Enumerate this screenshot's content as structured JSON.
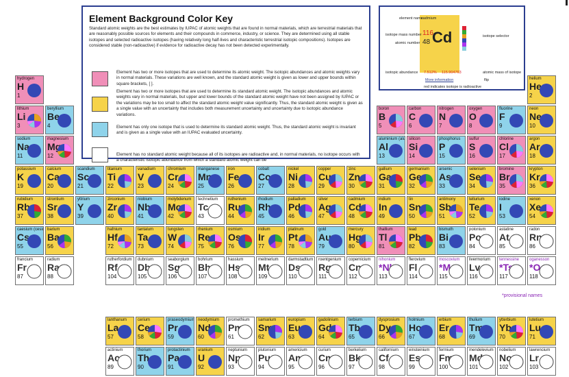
{
  "key": {
    "title": "Element Background Color Key",
    "intro": "Standard atomic weights are the best estimates by IUPAC of atomic weights that are found in normal materials, which are terrestrial materials that are reasonably possible sources for elements and their compounds in commerce, industry, or science. They are determined using all stable isotopes and selected radioactive isotopes (having relatively long half-lives and characteristic terrestrial isotopic compositions). Isotopes are considered stable (non-radioactive) if evidence for radioactive decay has not been detected experimentally.",
    "entries": [
      {
        "color": "#f08fb8",
        "text": "Element has two or more isotopes that are used to determine its atomic weight. The isotopic abundances and atomic weights vary in normal materials. These variations are well known, and the standard atomic weight is given as lower and upper bounds within square brackets, [ ]."
      },
      {
        "color": "#f6d34a",
        "text": "Element has two or more isotopes that are used to determine its standard atomic weight. The isotopic abundances and atomic weights vary in normal materials, but upper and lower bounds of the standard atomic weight have not been assigned by IUPAC or the variations may be too small to affect the standard atomic weight value significantly. Thus, the standard atomic weight is given as a single value with an uncertainty that includes both measurement uncertainty and uncertainty due to isotopic abundance variations."
      },
      {
        "color": "#8fd3ea",
        "text": "Element has only one isotope that is used to determine its standard atomic weight. Thus, the standard atomic weight is invariant and is given as a single value with an IUPAC evaluated uncertainty."
      },
      {
        "color": "#ffffff",
        "text": "Element has no standard atomic weight because all of its isotopes are radioactive and, in normal materials, no isotope occurs with a characteristic isotopic abundance from which a standard atomic weight can be"
      }
    ]
  },
  "legend": {
    "element_name": "cadmium",
    "mass_number": "116",
    "atomic_number": "48",
    "symbol": "Cd",
    "abundance": "7.512%",
    "isotope_mass": "115.904763",
    "labels": {
      "element_name": "element name",
      "mass_number": "isotope mass number",
      "atomic_number": "atomic number",
      "isotope_selector": "isotope selector",
      "isotopic_abundance": "isotopic abundance",
      "atomic_mass": "atomic mass of isotope",
      "more_info": "More information",
      "flip": "flip",
      "radioactive_note": "red indicates isotope is radioactive"
    }
  },
  "provisional_note": "*provisional names",
  "colors": {
    "pink": "#f08fb8",
    "yellow": "#f6d34a",
    "cyan": "#8fd3ea",
    "white": "#ffffff",
    "pie": "#3348b5",
    "border": "#2a3d8f"
  },
  "elements": [
    {
      "z": "1",
      "s": "H",
      "n": "hydrogen",
      "c": "pink",
      "p": "single"
    },
    {
      "z": "2",
      "s": "He",
      "n": "helium",
      "c": "yellow",
      "p": "single"
    },
    {
      "z": "3",
      "s": "Li",
      "n": "lithium",
      "c": "pink",
      "p": "multi"
    },
    {
      "z": "4",
      "s": "Be",
      "n": "beryllium",
      "c": "cyan",
      "p": "single"
    },
    {
      "z": "5",
      "s": "B",
      "n": "boron",
      "c": "pink",
      "p": "multi"
    },
    {
      "z": "6",
      "s": "C",
      "n": "carbon",
      "c": "pink",
      "p": "single"
    },
    {
      "z": "7",
      "s": "N",
      "n": "nitrogen",
      "c": "pink",
      "p": "single"
    },
    {
      "z": "8",
      "s": "O",
      "n": "oxygen",
      "c": "pink",
      "p": "single"
    },
    {
      "z": "9",
      "s": "F",
      "n": "fluorine",
      "c": "cyan",
      "p": "single"
    },
    {
      "z": "10",
      "s": "Ne",
      "n": "neon",
      "c": "yellow",
      "p": "single"
    },
    {
      "z": "11",
      "s": "Na",
      "n": "sodium",
      "c": "cyan",
      "p": "single"
    },
    {
      "z": "12",
      "s": "Mg",
      "n": "magnesium",
      "c": "pink",
      "p": "multi"
    },
    {
      "z": "13",
      "s": "Al",
      "n": "aluminium (aluminum)",
      "c": "cyan",
      "p": "single"
    },
    {
      "z": "14",
      "s": "Si",
      "n": "silicon",
      "c": "pink",
      "p": "single"
    },
    {
      "z": "15",
      "s": "P",
      "n": "phosphorus",
      "c": "cyan",
      "p": "single"
    },
    {
      "z": "16",
      "s": "S",
      "n": "sulfur",
      "c": "pink",
      "p": "single"
    },
    {
      "z": "17",
      "s": "Cl",
      "n": "chlorine",
      "c": "pink",
      "p": "multi"
    },
    {
      "z": "18",
      "s": "Ar",
      "n": "argon",
      "c": "yellow",
      "p": "single"
    },
    {
      "z": "19",
      "s": "K",
      "n": "potassium",
      "c": "yellow",
      "p": "single"
    },
    {
      "z": "20",
      "s": "Ca",
      "n": "calcium",
      "c": "yellow",
      "p": "single"
    },
    {
      "z": "21",
      "s": "Sc",
      "n": "scandium",
      "c": "cyan",
      "p": "single"
    },
    {
      "z": "22",
      "s": "Ti",
      "n": "titanium",
      "c": "yellow",
      "p": "multi"
    },
    {
      "z": "23",
      "s": "V",
      "n": "vanadium",
      "c": "yellow",
      "p": "single"
    },
    {
      "z": "24",
      "s": "Cr",
      "n": "chromium",
      "c": "yellow",
      "p": "multi"
    },
    {
      "z": "25",
      "s": "Mn",
      "n": "manganese",
      "c": "cyan",
      "p": "single"
    },
    {
      "z": "26",
      "s": "Fe",
      "n": "iron",
      "c": "yellow",
      "p": "single"
    },
    {
      "z": "27",
      "s": "Co",
      "n": "cobalt",
      "c": "cyan",
      "p": "single"
    },
    {
      "z": "28",
      "s": "Ni",
      "n": "nickel",
      "c": "yellow",
      "p": "multi"
    },
    {
      "z": "29",
      "s": "Cu",
      "n": "copper",
      "c": "yellow",
      "p": "multi"
    },
    {
      "z": "30",
      "s": "Zn",
      "n": "zinc",
      "c": "yellow",
      "p": "multi"
    },
    {
      "z": "31",
      "s": "Ga",
      "n": "gallium",
      "c": "yellow",
      "p": "multi"
    },
    {
      "z": "32",
      "s": "Ge",
      "n": "germanium",
      "c": "yellow",
      "p": "multi"
    },
    {
      "z": "33",
      "s": "As",
      "n": "arsenic",
      "c": "cyan",
      "p": "single"
    },
    {
      "z": "34",
      "s": "Se",
      "n": "selenium",
      "c": "yellow",
      "p": "multi"
    },
    {
      "z": "35",
      "s": "Br",
      "n": "bromine",
      "c": "pink",
      "p": "multi"
    },
    {
      "z": "36",
      "s": "Kr",
      "n": "krypton",
      "c": "yellow",
      "p": "multi"
    },
    {
      "z": "37",
      "s": "Rb",
      "n": "rubidium",
      "c": "yellow",
      "p": "multi"
    },
    {
      "z": "38",
      "s": "Sr",
      "n": "strontium",
      "c": "yellow",
      "p": "single"
    },
    {
      "z": "39",
      "s": "Y",
      "n": "yttrium",
      "c": "cyan",
      "p": "single"
    },
    {
      "z": "40",
      "s": "Zr",
      "n": "zirconium",
      "c": "yellow",
      "p": "multi"
    },
    {
      "z": "41",
      "s": "Nb",
      "n": "niobium",
      "c": "cyan",
      "p": "single"
    },
    {
      "z": "42",
      "s": "Mo",
      "n": "molybdenum",
      "c": "yellow",
      "p": "multi"
    },
    {
      "z": "43",
      "s": "Tc",
      "n": "technetium",
      "c": "white",
      "p": "none"
    },
    {
      "z": "44",
      "s": "Ru",
      "n": "ruthenium",
      "c": "yellow",
      "p": "multi"
    },
    {
      "z": "45",
      "s": "Rh",
      "n": "rhodium",
      "c": "cyan",
      "p": "single"
    },
    {
      "z": "46",
      "s": "Pd",
      "n": "palladium",
      "c": "yellow",
      "p": "multi"
    },
    {
      "z": "47",
      "s": "Ag",
      "n": "silver",
      "c": "yellow",
      "p": "multi"
    },
    {
      "z": "48",
      "s": "Cd",
      "n": "cadmium",
      "c": "yellow",
      "p": "multi"
    },
    {
      "z": "49",
      "s": "In",
      "n": "indium",
      "c": "yellow",
      "p": "single"
    },
    {
      "z": "50",
      "s": "Sn",
      "n": "tin",
      "c": "yellow",
      "p": "multi"
    },
    {
      "z": "51",
      "s": "Sb",
      "n": "antimony",
      "c": "yellow",
      "p": "multi"
    },
    {
      "z": "52",
      "s": "Te",
      "n": "tellurium",
      "c": "yellow",
      "p": "multi"
    },
    {
      "z": "53",
      "s": "I",
      "n": "iodine",
      "c": "cyan",
      "p": "single"
    },
    {
      "z": "54",
      "s": "Xe",
      "n": "xenon",
      "c": "yellow",
      "p": "multi"
    },
    {
      "z": "55",
      "s": "Cs",
      "n": "caesium (cesium)",
      "c": "cyan",
      "p": "single"
    },
    {
      "z": "56",
      "s": "Ba",
      "n": "barium",
      "c": "yellow",
      "p": "multi"
    },
    {
      "z": "72",
      "s": "Hf",
      "n": "hafnium",
      "c": "yellow",
      "p": "multi"
    },
    {
      "z": "73",
      "s": "Ta",
      "n": "tantalum",
      "c": "yellow",
      "p": "single"
    },
    {
      "z": "74",
      "s": "W",
      "n": "tungsten",
      "c": "yellow",
      "p": "multi"
    },
    {
      "z": "75",
      "s": "Re",
      "n": "rhenium",
      "c": "yellow",
      "p": "multi"
    },
    {
      "z": "76",
      "s": "Os",
      "n": "osmium",
      "c": "yellow",
      "p": "multi"
    },
    {
      "z": "77",
      "s": "Ir",
      "n": "iridium",
      "c": "yellow",
      "p": "multi"
    },
    {
      "z": "78",
      "s": "Pt",
      "n": "platinum",
      "c": "yellow",
      "p": "multi"
    },
    {
      "z": "79",
      "s": "Au",
      "n": "gold",
      "c": "cyan",
      "p": "single"
    },
    {
      "z": "80",
      "s": "Hg",
      "n": "mercury",
      "c": "yellow",
      "p": "multi"
    },
    {
      "z": "81",
      "s": "Tl",
      "n": "thallium",
      "c": "pink",
      "p": "multi"
    },
    {
      "z": "82",
      "s": "Pb",
      "n": "lead",
      "c": "yellow",
      "p": "multi"
    },
    {
      "z": "83",
      "s": "Bi",
      "n": "bismuth",
      "c": "cyan",
      "p": "single"
    },
    {
      "z": "84",
      "s": "Po",
      "n": "polonium",
      "c": "white",
      "p": "none"
    },
    {
      "z": "85",
      "s": "At",
      "n": "astatine",
      "c": "white",
      "p": "none"
    },
    {
      "z": "86",
      "s": "Rn",
      "n": "radon",
      "c": "white",
      "p": "none"
    },
    {
      "z": "87",
      "s": "Fr",
      "n": "francium",
      "c": "white",
      "p": "none"
    },
    {
      "z": "88",
      "s": "Ra",
      "n": "radium",
      "c": "white",
      "p": "none"
    },
    {
      "z": "104",
      "s": "Rf",
      "n": "rutherfordium",
      "c": "white",
      "p": "none"
    },
    {
      "z": "105",
      "s": "Db",
      "n": "dubnium",
      "c": "white",
      "p": "none"
    },
    {
      "z": "106",
      "s": "Sg",
      "n": "seaborgium",
      "c": "white",
      "p": "none"
    },
    {
      "z": "107",
      "s": "Bh",
      "n": "bohrium",
      "c": "white",
      "p": "none"
    },
    {
      "z": "108",
      "s": "Hs",
      "n": "hassium",
      "c": "white",
      "p": "none"
    },
    {
      "z": "109",
      "s": "Mt",
      "n": "meitnerium",
      "c": "white",
      "p": "none"
    },
    {
      "z": "110",
      "s": "Ds",
      "n": "darmstadtium",
      "c": "white",
      "p": "none"
    },
    {
      "z": "111",
      "s": "Rg",
      "n": "roentgenium",
      "c": "white",
      "p": "none"
    },
    {
      "z": "112",
      "s": "Cn",
      "n": "copernicium",
      "c": "white",
      "p": "none"
    },
    {
      "z": "113",
      "s": "*Nh",
      "n": "nihonium",
      "c": "white",
      "p": "none",
      "prov": true
    },
    {
      "z": "114",
      "s": "Fl",
      "n": "flerovium",
      "c": "white",
      "p": "none"
    },
    {
      "z": "115",
      "s": "*Mc",
      "n": "moscovium",
      "c": "white",
      "p": "none",
      "prov": true
    },
    {
      "z": "116",
      "s": "Lv",
      "n": "livermorium",
      "c": "white",
      "p": "none"
    },
    {
      "z": "117",
      "s": "*Ts",
      "n": "tennessine",
      "c": "white",
      "p": "none",
      "prov": true
    },
    {
      "z": "118",
      "s": "*Og",
      "n": "oganesson",
      "c": "white",
      "p": "none",
      "prov": true
    },
    {
      "z": "57",
      "s": "La",
      "n": "lanthanum",
      "c": "yellow",
      "p": "single"
    },
    {
      "z": "58",
      "s": "Ce",
      "n": "cerium",
      "c": "yellow",
      "p": "multi"
    },
    {
      "z": "59",
      "s": "Pr",
      "n": "praseodymium",
      "c": "cyan",
      "p": "single"
    },
    {
      "z": "60",
      "s": "Nd",
      "n": "neodymium",
      "c": "yellow",
      "p": "multi"
    },
    {
      "z": "61",
      "s": "Pm",
      "n": "promethium",
      "c": "white",
      "p": "none"
    },
    {
      "z": "62",
      "s": "Sm",
      "n": "samarium",
      "c": "yellow",
      "p": "multi"
    },
    {
      "z": "63",
      "s": "Eu",
      "n": "europium",
      "c": "yellow",
      "p": "single"
    },
    {
      "z": "64",
      "s": "Gd",
      "n": "gadolinium",
      "c": "yellow",
      "p": "multi"
    },
    {
      "z": "65",
      "s": "Tb",
      "n": "terbium",
      "c": "cyan",
      "p": "single"
    },
    {
      "z": "66",
      "s": "Dy",
      "n": "dysprosium",
      "c": "yellow",
      "p": "multi"
    },
    {
      "z": "67",
      "s": "Ho",
      "n": "holmium",
      "c": "cyan",
      "p": "single"
    },
    {
      "z": "68",
      "s": "Er",
      "n": "erbium",
      "c": "yellow",
      "p": "multi"
    },
    {
      "z": "69",
      "s": "Tm",
      "n": "thulium",
      "c": "cyan",
      "p": "single"
    },
    {
      "z": "70",
      "s": "Yb",
      "n": "ytterbium",
      "c": "yellow",
      "p": "multi"
    },
    {
      "z": "71",
      "s": "Lu",
      "n": "lutetium",
      "c": "yellow",
      "p": "single"
    },
    {
      "z": "89",
      "s": "Ac",
      "n": "actinium",
      "c": "white",
      "p": "none"
    },
    {
      "z": "90",
      "s": "Th",
      "n": "thorium",
      "c": "cyan",
      "p": "single"
    },
    {
      "z": "91",
      "s": "Pa",
      "n": "protactinium",
      "c": "cyan",
      "p": "single"
    },
    {
      "z": "92",
      "s": "U",
      "n": "uranium",
      "c": "yellow",
      "p": "single"
    },
    {
      "z": "93",
      "s": "Np",
      "n": "neptunium",
      "c": "white",
      "p": "none"
    },
    {
      "z": "94",
      "s": "Pu",
      "n": "plutonium",
      "c": "white",
      "p": "none"
    },
    {
      "z": "95",
      "s": "Am",
      "n": "americium",
      "c": "white",
      "p": "none"
    },
    {
      "z": "96",
      "s": "Cm",
      "n": "curium",
      "c": "white",
      "p": "none"
    },
    {
      "z": "97",
      "s": "Bk",
      "n": "berkelium",
      "c": "white",
      "p": "none"
    },
    {
      "z": "98",
      "s": "Cf",
      "n": "californium",
      "c": "white",
      "p": "none"
    },
    {
      "z": "99",
      "s": "Es",
      "n": "einsteinium",
      "c": "white",
      "p": "none"
    },
    {
      "z": "100",
      "s": "Fm",
      "n": "fermium",
      "c": "white",
      "p": "none"
    },
    {
      "z": "101",
      "s": "Md",
      "n": "mendelevium",
      "c": "white",
      "p": "none"
    },
    {
      "z": "102",
      "s": "No",
      "n": "nobelium",
      "c": "white",
      "p": "none"
    },
    {
      "z": "103",
      "s": "Lr",
      "n": "lawrencium",
      "c": "white",
      "p": "none"
    }
  ]
}
